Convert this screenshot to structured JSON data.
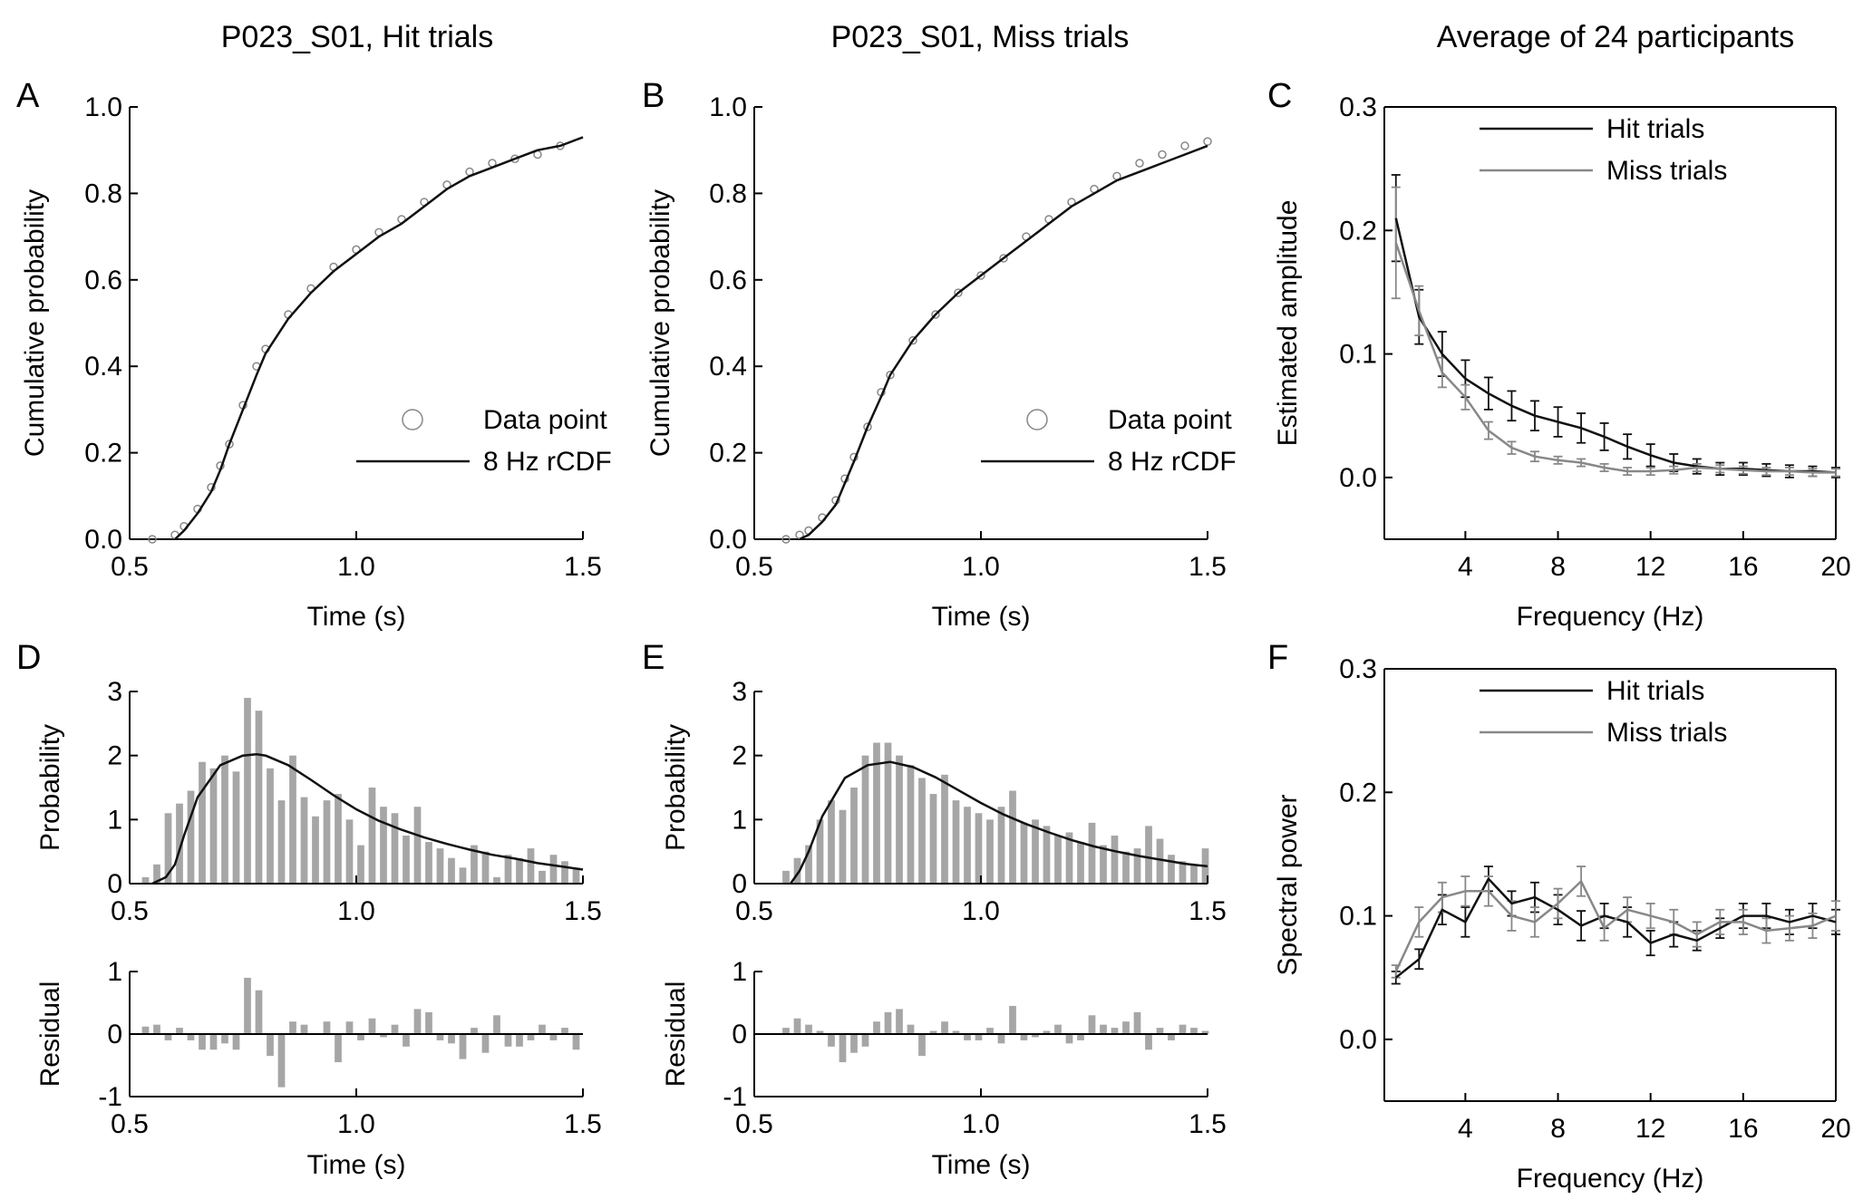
{
  "figure": {
    "titles": [
      "P023_S01, Hit trials",
      "P023_S01, Miss trials",
      "Average of 24 participants"
    ],
    "panel_letters": [
      "A",
      "B",
      "C",
      "D",
      "E",
      "F"
    ]
  },
  "colors": {
    "black": "#111111",
    "gray": "#888888",
    "bar": "#a6a6a6"
  },
  "chart_data": [
    {
      "panel": "A",
      "type": "scatter",
      "title": "P023_S01, Hit trials",
      "xlabel": "Time (s)",
      "ylabel": "Cumulative probability",
      "xlim": [
        0.5,
        1.5
      ],
      "ylim": [
        0,
        1
      ],
      "xticks": [
        0.5,
        1.0,
        1.5
      ],
      "xticklabels": [
        "0.5",
        "1.0",
        "1.5"
      ],
      "yticks": [
        0,
        0.2,
        0.4,
        0.6,
        0.8,
        1.0
      ],
      "yticklabels": [
        "0.0",
        "0.2",
        "0.4",
        "0.6",
        "0.8",
        "1.0"
      ],
      "legend": {
        "position": "bottom-right",
        "entries": [
          "Data point",
          "8 Hz rCDF"
        ]
      },
      "series": [
        {
          "name": "Data point",
          "marker": "circle",
          "color": "#888888",
          "x": [
            0.55,
            0.6,
            0.62,
            0.65,
            0.68,
            0.7,
            0.72,
            0.75,
            0.78,
            0.8,
            0.85,
            0.9,
            0.95,
            1.0,
            1.05,
            1.1,
            1.15,
            1.2,
            1.25,
            1.3,
            1.35,
            1.4,
            1.45
          ],
          "y": [
            0.0,
            0.01,
            0.03,
            0.07,
            0.12,
            0.17,
            0.22,
            0.31,
            0.4,
            0.44,
            0.52,
            0.58,
            0.63,
            0.67,
            0.71,
            0.74,
            0.78,
            0.82,
            0.85,
            0.87,
            0.88,
            0.89,
            0.91
          ]
        },
        {
          "name": "8 Hz rCDF",
          "color": "#111111",
          "x": [
            0.6,
            0.62,
            0.65,
            0.68,
            0.7,
            0.72,
            0.75,
            0.78,
            0.8,
            0.85,
            0.9,
            0.95,
            1.0,
            1.05,
            1.1,
            1.15,
            1.2,
            1.25,
            1.3,
            1.35,
            1.4,
            1.45,
            1.5
          ],
          "y": [
            0.0,
            0.02,
            0.06,
            0.11,
            0.16,
            0.22,
            0.3,
            0.38,
            0.43,
            0.51,
            0.57,
            0.62,
            0.66,
            0.7,
            0.73,
            0.77,
            0.81,
            0.84,
            0.86,
            0.88,
            0.9,
            0.91,
            0.93
          ]
        }
      ]
    },
    {
      "panel": "B",
      "type": "scatter",
      "title": "P023_S01, Miss trials",
      "xlabel": "Time (s)",
      "ylabel": "Cumulative probability",
      "xlim": [
        0.5,
        1.5
      ],
      "ylim": [
        0,
        1
      ],
      "xticks": [
        0.5,
        1.0,
        1.5
      ],
      "xticklabels": [
        "0.5",
        "1.0",
        "1.5"
      ],
      "yticks": [
        0,
        0.2,
        0.4,
        0.6,
        0.8,
        1.0
      ],
      "yticklabels": [
        "0.0",
        "0.2",
        "0.4",
        "0.6",
        "0.8",
        "1.0"
      ],
      "legend": {
        "position": "bottom-right",
        "entries": [
          "Data point",
          "8 Hz rCDF"
        ]
      },
      "series": [
        {
          "name": "Data point",
          "marker": "circle",
          "color": "#888888",
          "x": [
            0.57,
            0.6,
            0.62,
            0.65,
            0.68,
            0.7,
            0.72,
            0.75,
            0.78,
            0.8,
            0.85,
            0.9,
            0.95,
            1.0,
            1.05,
            1.1,
            1.15,
            1.2,
            1.25,
            1.3,
            1.35,
            1.4,
            1.45,
            1.5
          ],
          "y": [
            0.0,
            0.01,
            0.02,
            0.05,
            0.09,
            0.14,
            0.19,
            0.26,
            0.34,
            0.38,
            0.46,
            0.52,
            0.57,
            0.61,
            0.65,
            0.7,
            0.74,
            0.78,
            0.81,
            0.84,
            0.87,
            0.89,
            0.91,
            0.92
          ]
        },
        {
          "name": "8 Hz rCDF",
          "color": "#111111",
          "x": [
            0.6,
            0.62,
            0.65,
            0.68,
            0.7,
            0.72,
            0.75,
            0.78,
            0.8,
            0.85,
            0.9,
            0.95,
            1.0,
            1.05,
            1.1,
            1.15,
            1.2,
            1.25,
            1.3,
            1.35,
            1.4,
            1.45,
            1.5
          ],
          "y": [
            0.0,
            0.01,
            0.04,
            0.08,
            0.13,
            0.18,
            0.26,
            0.33,
            0.38,
            0.46,
            0.52,
            0.57,
            0.61,
            0.65,
            0.69,
            0.73,
            0.77,
            0.8,
            0.83,
            0.85,
            0.87,
            0.89,
            0.91
          ]
        }
      ]
    },
    {
      "panel": "C",
      "type": "line",
      "title": "Average of 24 participants",
      "xlabel": "Frequency (Hz)",
      "ylabel": "Estimated amplitude",
      "xlim": [
        0.5,
        20
      ],
      "ylim": [
        -0.05,
        0.3
      ],
      "xticks": [
        4,
        8,
        12,
        16,
        20
      ],
      "xticklabels": [
        "4",
        "8",
        "12",
        "16",
        "20"
      ],
      "yticks": [
        0.0,
        0.1,
        0.2,
        0.3
      ],
      "yticklabels": [
        "0.0",
        "0.1",
        "0.2",
        "0.3"
      ],
      "legend": {
        "position": "top-right",
        "entries": [
          "Hit trials",
          "Miss trials"
        ]
      },
      "series": [
        {
          "name": "Hit trials",
          "color": "#111111",
          "x": [
            1,
            2,
            3,
            4,
            5,
            6,
            7,
            8,
            9,
            10,
            11,
            12,
            13,
            14,
            15,
            16,
            17,
            18,
            19,
            20
          ],
          "y": [
            0.21,
            0.13,
            0.1,
            0.08,
            0.068,
            0.058,
            0.05,
            0.045,
            0.04,
            0.033,
            0.025,
            0.018,
            0.012,
            0.009,
            0.007,
            0.007,
            0.006,
            0.005,
            0.005,
            0.004
          ],
          "err": [
            0.035,
            0.022,
            0.018,
            0.015,
            0.013,
            0.012,
            0.012,
            0.012,
            0.012,
            0.011,
            0.01,
            0.009,
            0.007,
            0.006,
            0.005,
            0.005,
            0.005,
            0.005,
            0.004,
            0.004
          ]
        },
        {
          "name": "Miss trials",
          "color": "#888888",
          "x": [
            1,
            2,
            3,
            4,
            5,
            6,
            7,
            8,
            9,
            10,
            11,
            12,
            13,
            14,
            15,
            16,
            17,
            18,
            19,
            20
          ],
          "y": [
            0.19,
            0.135,
            0.085,
            0.065,
            0.038,
            0.024,
            0.017,
            0.014,
            0.012,
            0.008,
            0.005,
            0.005,
            0.006,
            0.008,
            0.007,
            0.006,
            0.005,
            0.005,
            0.004,
            0.004
          ],
          "err": [
            0.045,
            0.02,
            0.012,
            0.01,
            0.007,
            0.005,
            0.004,
            0.003,
            0.003,
            0.003,
            0.003,
            0.003,
            0.003,
            0.003,
            0.003,
            0.003,
            0.003,
            0.003,
            0.003,
            0.003
          ]
        }
      ]
    },
    {
      "panel": "D",
      "type": "bar",
      "title": "",
      "xlabel": "Time (s)",
      "ylabel": "Probability",
      "residual_ylabel": "Residual",
      "xlim": [
        0.5,
        1.5
      ],
      "ylim": [
        0,
        3
      ],
      "residual_ylim": [
        -1,
        1
      ],
      "xticks": [
        0.5,
        1.0,
        1.5
      ],
      "xticklabels": [
        "0.5",
        "1.0",
        "1.5"
      ],
      "yticks": [
        0,
        1,
        2,
        3
      ],
      "yticklabels": [
        "0",
        "1",
        "2",
        "3"
      ],
      "residual_yticks": [
        -1,
        0,
        1
      ],
      "residual_yticklabels": [
        "-1",
        "0",
        "1"
      ],
      "bin_start": 0.535,
      "bin_width": 0.025,
      "values": [
        0.1,
        0.3,
        1.1,
        1.25,
        1.45,
        1.9,
        1.8,
        2.0,
        1.75,
        2.9,
        2.7,
        1.8,
        1.3,
        2.0,
        1.35,
        1.05,
        1.3,
        1.4,
        1.0,
        0.6,
        1.5,
        1.2,
        1.1,
        0.75,
        1.2,
        0.65,
        0.55,
        0.4,
        0.25,
        0.6,
        0.5,
        0.1,
        0.45,
        0.4,
        0.55,
        0.2,
        0.45,
        0.35,
        0.25
      ],
      "residuals": [
        0.12,
        0.15,
        -0.1,
        0.1,
        -0.1,
        -0.25,
        -0.25,
        -0.15,
        -0.25,
        0.9,
        0.7,
        -0.35,
        -0.85,
        0.2,
        0.15,
        0.0,
        0.2,
        -0.45,
        0.2,
        -0.1,
        0.25,
        -0.05,
        0.15,
        -0.2,
        0.4,
        0.35,
        -0.1,
        -0.15,
        -0.4,
        0.1,
        -0.3,
        0.3,
        -0.2,
        -0.2,
        -0.1,
        0.15,
        -0.1,
        0.1,
        -0.25
      ],
      "curve": {
        "x": [
          0.55,
          0.58,
          0.6,
          0.62,
          0.65,
          0.7,
          0.75,
          0.78,
          0.8,
          0.85,
          0.9,
          0.95,
          1.0,
          1.05,
          1.1,
          1.15,
          1.2,
          1.25,
          1.3,
          1.35,
          1.4,
          1.45,
          1.5
        ],
        "y": [
          0.0,
          0.1,
          0.3,
          0.75,
          1.35,
          1.85,
          2.0,
          2.02,
          2.0,
          1.85,
          1.62,
          1.38,
          1.16,
          0.98,
          0.84,
          0.72,
          0.62,
          0.53,
          0.45,
          0.39,
          0.32,
          0.27,
          0.22
        ]
      }
    },
    {
      "panel": "E",
      "type": "bar",
      "title": "",
      "xlabel": "Time (s)",
      "ylabel": "Probability",
      "residual_ylabel": "Residual",
      "xlim": [
        0.5,
        1.5
      ],
      "ylim": [
        0,
        3
      ],
      "residual_ylim": [
        -1,
        1
      ],
      "xticks": [
        0.5,
        1.0,
        1.5
      ],
      "xticklabels": [
        "0.5",
        "1.0",
        "1.5"
      ],
      "yticks": [
        0,
        1,
        2,
        3
      ],
      "yticklabels": [
        "0",
        "1",
        "2",
        "3"
      ],
      "residual_yticks": [
        -1,
        0,
        1
      ],
      "residual_yticklabels": [
        "-1",
        "0",
        "1"
      ],
      "bin_start": 0.57,
      "bin_width": 0.025,
      "values": [
        0.2,
        0.4,
        0.6,
        1.0,
        1.3,
        1.15,
        1.5,
        2.0,
        2.2,
        2.2,
        2.0,
        1.85,
        1.65,
        1.4,
        1.7,
        1.3,
        1.2,
        1.1,
        1.0,
        1.2,
        1.45,
        0.95,
        1.0,
        0.9,
        0.75,
        0.8,
        0.65,
        0.95,
        0.6,
        0.75,
        0.5,
        0.55,
        0.9,
        0.7,
        0.45,
        0.35,
        0.3,
        0.55
      ],
      "residuals": [
        0.1,
        0.25,
        0.15,
        0.05,
        -0.2,
        -0.45,
        -0.3,
        -0.2,
        0.2,
        0.35,
        0.4,
        0.15,
        -0.35,
        0.05,
        0.2,
        0.05,
        -0.1,
        -0.1,
        0.1,
        -0.15,
        0.45,
        -0.1,
        -0.05,
        0.05,
        0.15,
        -0.15,
        -0.1,
        0.3,
        0.15,
        0.1,
        0.2,
        0.35,
        -0.25,
        0.1,
        -0.1,
        0.15,
        0.1,
        0.05
      ],
      "curve": {
        "x": [
          0.58,
          0.6,
          0.62,
          0.65,
          0.7,
          0.75,
          0.8,
          0.85,
          0.9,
          0.95,
          1.0,
          1.05,
          1.1,
          1.15,
          1.2,
          1.25,
          1.3,
          1.35,
          1.4,
          1.45,
          1.5
        ],
        "y": [
          0.0,
          0.2,
          0.5,
          1.05,
          1.65,
          1.85,
          1.9,
          1.82,
          1.66,
          1.46,
          1.26,
          1.08,
          0.93,
          0.8,
          0.68,
          0.58,
          0.5,
          0.43,
          0.37,
          0.31,
          0.27
        ]
      }
    },
    {
      "panel": "F",
      "type": "line",
      "title": "",
      "xlabel": "Frequency (Hz)",
      "ylabel": "Spectral power",
      "xlim": [
        0.5,
        20
      ],
      "ylim": [
        -0.05,
        0.3
      ],
      "xticks": [
        4,
        8,
        12,
        16,
        20
      ],
      "xticklabels": [
        "4",
        "8",
        "12",
        "16",
        "20"
      ],
      "yticks": [
        0.0,
        0.1,
        0.2,
        0.3
      ],
      "yticklabels": [
        "0.0",
        "0.1",
        "0.2",
        "0.3"
      ],
      "legend": {
        "position": "top-right",
        "entries": [
          "Hit trials",
          "Miss trials"
        ]
      },
      "series": [
        {
          "name": "Hit trials",
          "color": "#111111",
          "x": [
            1,
            2,
            3,
            4,
            5,
            6,
            7,
            8,
            9,
            10,
            11,
            12,
            13,
            14,
            15,
            16,
            17,
            18,
            19,
            20
          ],
          "y": [
            0.05,
            0.065,
            0.105,
            0.095,
            0.13,
            0.11,
            0.115,
            0.105,
            0.092,
            0.1,
            0.095,
            0.078,
            0.085,
            0.08,
            0.09,
            0.1,
            0.1,
            0.095,
            0.1,
            0.095
          ],
          "err": [
            0.005,
            0.008,
            0.012,
            0.012,
            0.01,
            0.01,
            0.012,
            0.012,
            0.012,
            0.01,
            0.012,
            0.01,
            0.01,
            0.008,
            0.008,
            0.01,
            0.01,
            0.01,
            0.01,
            0.01
          ]
        },
        {
          "name": "Miss trials",
          "color": "#888888",
          "x": [
            1,
            2,
            3,
            4,
            5,
            6,
            7,
            8,
            9,
            10,
            11,
            12,
            13,
            14,
            15,
            16,
            17,
            18,
            19,
            20
          ],
          "y": [
            0.055,
            0.095,
            0.115,
            0.12,
            0.12,
            0.1,
            0.095,
            0.11,
            0.128,
            0.09,
            0.105,
            0.1,
            0.095,
            0.085,
            0.095,
            0.095,
            0.088,
            0.09,
            0.092,
            0.1
          ],
          "err": [
            0.005,
            0.012,
            0.012,
            0.012,
            0.012,
            0.012,
            0.012,
            0.012,
            0.012,
            0.01,
            0.01,
            0.01,
            0.01,
            0.01,
            0.01,
            0.01,
            0.01,
            0.01,
            0.01,
            0.012
          ]
        }
      ]
    }
  ]
}
